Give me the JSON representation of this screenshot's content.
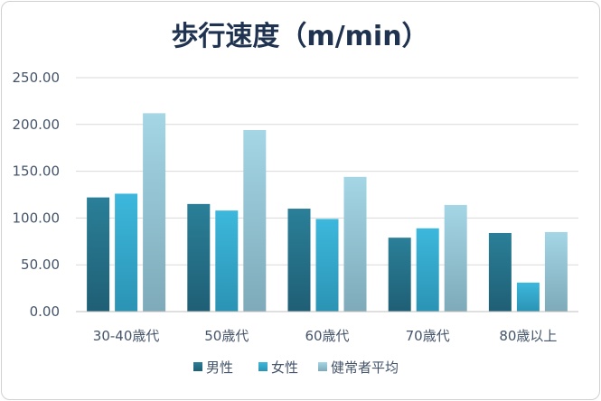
{
  "chart_data": {
    "type": "bar",
    "title": "歩行速度（m/min）",
    "categories": [
      "30-40歳代",
      "50歳代",
      "60歳代",
      "70歳代",
      "80歳以上"
    ],
    "series": [
      {
        "name": "男性",
        "values": [
          122,
          115,
          110,
          79,
          84
        ],
        "color": "#2f7f96"
      },
      {
        "name": "女性",
        "values": [
          126,
          108,
          99,
          89,
          31
        ],
        "color": "#3bb3d6"
      },
      {
        "name": "健常者平均",
        "values": [
          212,
          194,
          144,
          114,
          85
        ],
        "color": "#9ccfe0"
      }
    ],
    "yticks": [
      "0.00",
      "50.00",
      "100.00",
      "150.00",
      "200.00",
      "250.00"
    ],
    "ylim": [
      0,
      250
    ],
    "grid": true,
    "legend_position": "bottom"
  }
}
